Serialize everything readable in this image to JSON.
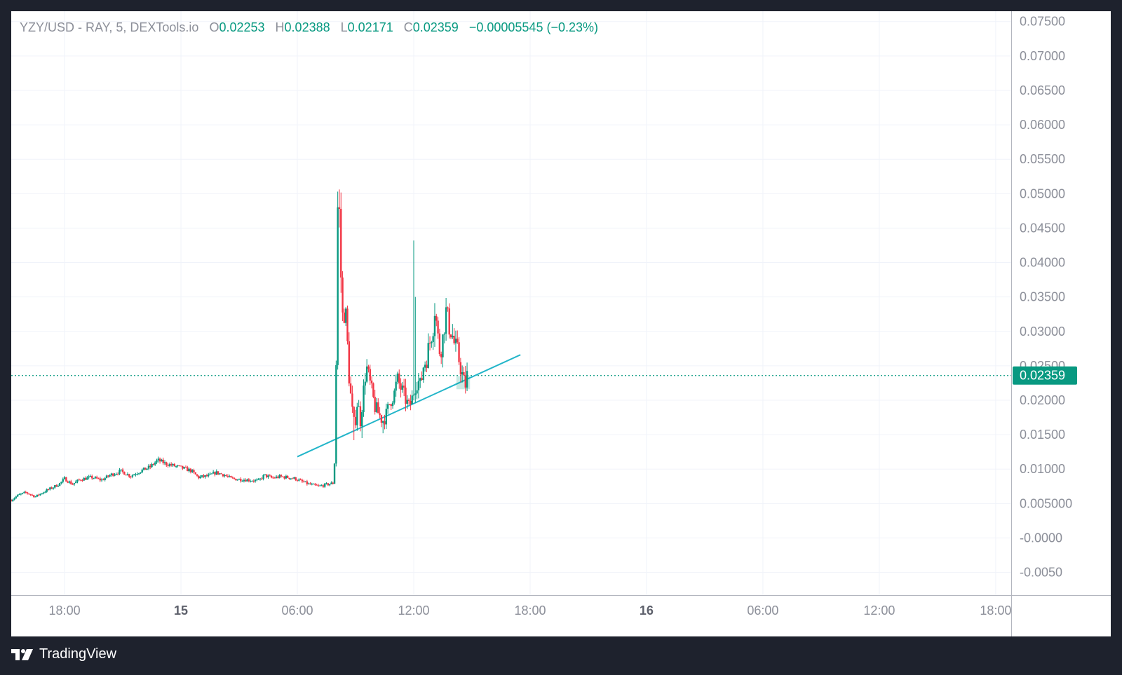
{
  "legend": {
    "symbol": "YZY/USD - RAY, 5, DEXTools.io",
    "o_label": "O",
    "o": "0.02253",
    "h_label": "H",
    "h": "0.02388",
    "l_label": "L",
    "l": "0.02171",
    "c_label": "C",
    "c": "0.02359",
    "change": "−0.00005545 (−0.23%)"
  },
  "branding": {
    "name": "TradingView"
  },
  "colors": {
    "up": "#089981",
    "down": "#f23645",
    "trendline": "#22b5c9",
    "price_line": "#089981",
    "grid": "#f0f3fa",
    "axis_text": "#8c8f99"
  },
  "chart_data": {
    "type": "candlestick",
    "title": "YZY/USD - RAY, 5, DEXTools.io",
    "interval": "5",
    "x_ticks": [
      "18:00",
      "15",
      "06:00",
      "12:00",
      "18:00",
      "16",
      "06:00",
      "12:00",
      "18:00"
    ],
    "x_ticks_bold": [
      false,
      true,
      false,
      false,
      false,
      true,
      false,
      false,
      false
    ],
    "x_tick_hours": [
      18,
      24,
      30,
      36,
      42,
      48,
      54,
      60,
      66
    ],
    "x_range_hours": [
      15.25,
      66.8
    ],
    "y_ticks": [
      "0.07500",
      "0.07000",
      "0.06500",
      "0.06000",
      "0.05500",
      "0.05000",
      "0.04500",
      "0.04000",
      "0.03500",
      "0.03000",
      "0.02500",
      "0.02000",
      "0.01500",
      "0.01000",
      "0.005000",
      "-0.0000",
      "-0.0050"
    ],
    "y_tick_values": [
      0.075,
      0.07,
      0.065,
      0.06,
      0.055,
      0.05,
      0.045,
      0.04,
      0.035,
      0.03,
      0.025,
      0.02,
      0.015,
      0.01,
      0.005,
      0,
      -0.005
    ],
    "y_range": [
      -0.0083,
      0.0765
    ],
    "last_price": 0.02359,
    "last_price_label": "0.02359",
    "last_ohlc": {
      "open": 0.02253,
      "high": 0.02388,
      "low": 0.02171,
      "close": 0.02359
    },
    "price_path": [
      [
        15.25,
        0.0055
      ],
      [
        15.6,
        0.0062
      ],
      [
        16.0,
        0.0066
      ],
      [
        16.5,
        0.006
      ],
      [
        17.0,
        0.0068
      ],
      [
        17.5,
        0.0075
      ],
      [
        17.8,
        0.008
      ],
      [
        18.0,
        0.0086
      ],
      [
        18.4,
        0.0078
      ],
      [
        18.8,
        0.0085
      ],
      [
        19.4,
        0.0088
      ],
      [
        19.9,
        0.0084
      ],
      [
        20.4,
        0.0092
      ],
      [
        20.9,
        0.0097
      ],
      [
        21.4,
        0.009
      ],
      [
        21.9,
        0.0097
      ],
      [
        22.4,
        0.0103
      ],
      [
        22.8,
        0.0113
      ],
      [
        23.2,
        0.0108
      ],
      [
        23.6,
        0.0105
      ],
      [
        24.0,
        0.0102
      ],
      [
        24.5,
        0.0098
      ],
      [
        24.9,
        0.0088
      ],
      [
        25.4,
        0.009
      ],
      [
        25.8,
        0.0095
      ],
      [
        26.2,
        0.0092
      ],
      [
        26.6,
        0.0086
      ],
      [
        27.1,
        0.0085
      ],
      [
        27.6,
        0.0084
      ],
      [
        28.0,
        0.0083
      ],
      [
        28.3,
        0.0091
      ],
      [
        28.7,
        0.0087
      ],
      [
        29.1,
        0.0089
      ],
      [
        29.5,
        0.0088
      ],
      [
        29.9,
        0.0086
      ],
      [
        30.2,
        0.0082
      ],
      [
        30.6,
        0.0078
      ],
      [
        31.1,
        0.0075
      ],
      [
        31.6,
        0.0078
      ],
      [
        31.9,
        0.008
      ],
      [
        32.0,
        0.0255
      ],
      [
        32.05,
        0.046
      ],
      [
        32.1,
        0.049
      ],
      [
        32.17,
        0.047
      ],
      [
        32.25,
        0.038
      ],
      [
        32.35,
        0.031
      ],
      [
        32.45,
        0.034
      ],
      [
        32.55,
        0.03
      ],
      [
        32.65,
        0.024
      ],
      [
        32.8,
        0.019
      ],
      [
        32.95,
        0.016
      ],
      [
        33.1,
        0.02
      ],
      [
        33.25,
        0.017
      ],
      [
        33.4,
        0.021
      ],
      [
        33.55,
        0.025
      ],
      [
        33.7,
        0.023
      ],
      [
        33.85,
        0.021
      ],
      [
        34.0,
        0.019
      ],
      [
        34.2,
        0.018
      ],
      [
        34.4,
        0.017
      ],
      [
        34.6,
        0.018
      ],
      [
        34.8,
        0.02
      ],
      [
        35.0,
        0.021
      ],
      [
        35.15,
        0.023
      ],
      [
        35.3,
        0.022
      ],
      [
        35.45,
        0.021
      ],
      [
        35.6,
        0.02
      ],
      [
        35.75,
        0.019
      ],
      [
        35.9,
        0.02
      ],
      [
        36.05,
        0.022
      ],
      [
        36.2,
        0.023
      ],
      [
        36.35,
        0.022
      ],
      [
        36.5,
        0.025
      ],
      [
        36.65,
        0.026
      ],
      [
        36.8,
        0.028
      ],
      [
        37.0,
        0.031
      ],
      [
        37.1,
        0.034
      ],
      [
        37.2,
        0.03
      ],
      [
        37.35,
        0.027
      ],
      [
        37.5,
        0.029
      ],
      [
        37.65,
        0.033
      ],
      [
        37.8,
        0.031
      ],
      [
        37.95,
        0.03
      ],
      [
        38.1,
        0.028
      ],
      [
        38.25,
        0.027
      ],
      [
        38.4,
        0.025
      ],
      [
        38.55,
        0.023
      ],
      [
        38.65,
        0.022
      ],
      [
        38.75,
        0.02359
      ]
    ],
    "wick_extremes": [
      [
        32.12,
        0.0503
      ],
      [
        36.0,
        0.0432
      ],
      [
        32.9,
        0.0142
      ],
      [
        33.3,
        0.0145
      ],
      [
        34.45,
        0.0152
      ],
      [
        36.1,
        0.035
      ]
    ],
    "trendline": [
      [
        30.0,
        0.0118
      ],
      [
        41.5,
        0.0266
      ]
    ],
    "highlight_box": {
      "x": [
        38.2,
        38.9
      ],
      "y": [
        0.0216,
        0.0235
      ]
    }
  }
}
